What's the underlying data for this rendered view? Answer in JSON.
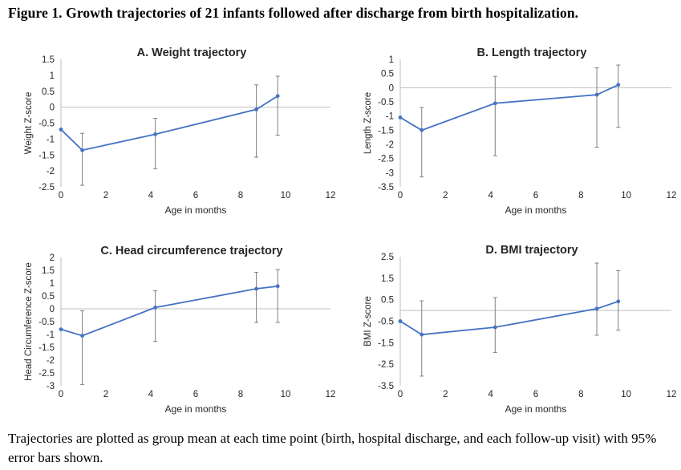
{
  "figure_title": "Figure  1. Growth trajectories of 21 infants followed after discharge from birth hospitalization.",
  "caption": "Trajectories are plotted as group mean at each time point (birth, hospital discharge, and each follow-up visit) with 95% error bars shown.",
  "colors": {
    "series": "#4472c4",
    "error_bar": "#7f7f7f",
    "zero_line": "#bfbfbf",
    "axis": "#bfbfbf"
  },
  "chart_data": [
    {
      "type": "line",
      "title": "A. Weight trajectory",
      "xlabel": "Age in months",
      "ylabel": "Weight Z-score",
      "xlim": [
        0,
        12
      ],
      "ylim": [
        -2.5,
        1.5
      ],
      "x_ticks": [
        "0",
        "2",
        "4",
        "6",
        "8",
        "10",
        "12"
      ],
      "y_ticks": [
        "1.5",
        "1",
        "0.5",
        "0",
        "-0.5",
        "-1",
        "-1.5",
        "-2",
        "-2.5"
      ],
      "grid": false,
      "series": [
        {
          "x": [
            0,
            0.95,
            4.2,
            8.7,
            9.65
          ],
          "y": [
            -0.7,
            -1.35,
            -0.85,
            -0.07,
            0.35
          ],
          "error_upper": [
            null,
            -0.82,
            -0.35,
            0.7,
            0.97
          ],
          "error_lower": [
            null,
            -2.45,
            -1.93,
            -1.57,
            -0.88
          ]
        }
      ]
    },
    {
      "type": "line",
      "title": "B. Length trajectory",
      "xlabel": "Age in months",
      "ylabel": "Length Z-score",
      "xlim": [
        0,
        12
      ],
      "ylim": [
        -3.5,
        1
      ],
      "x_ticks": [
        "0",
        "2",
        "4",
        "6",
        "8",
        "10",
        "12"
      ],
      "y_ticks": [
        "1",
        "0.5",
        "0",
        "-0.5",
        "-1",
        "-1.5",
        "-2",
        "-2.5",
        "-3",
        "-3.5"
      ],
      "grid": false,
      "series": [
        {
          "x": [
            0,
            0.95,
            4.2,
            8.7,
            9.65
          ],
          "y": [
            -1.05,
            -1.5,
            -0.55,
            -0.25,
            0.1
          ],
          "error_upper": [
            null,
            -0.7,
            0.4,
            0.7,
            0.8
          ],
          "error_lower": [
            null,
            -3.15,
            -2.4,
            -2.1,
            -1.4
          ]
        }
      ]
    },
    {
      "type": "line",
      "title": "C. Head circumference trajectory",
      "xlabel": "Age in months",
      "ylabel": "Head Circumference Z-score",
      "xlim": [
        0,
        12
      ],
      "ylim": [
        -3,
        2
      ],
      "x_ticks": [
        "0",
        "2",
        "4",
        "6",
        "8",
        "10",
        "12"
      ],
      "y_ticks": [
        "2",
        "1.5",
        "1",
        "0.5",
        "0",
        "-0.5",
        "-1",
        "-1.5",
        "-2",
        "-2.5",
        "-3"
      ],
      "grid": false,
      "series": [
        {
          "x": [
            0,
            0.95,
            4.2,
            8.7,
            9.65
          ],
          "y": [
            -0.8,
            -1.05,
            0.05,
            0.78,
            0.88
          ],
          "error_upper": [
            null,
            -0.08,
            0.7,
            1.42,
            1.53
          ],
          "error_lower": [
            null,
            -2.95,
            -1.27,
            -0.53,
            -0.53
          ]
        }
      ]
    },
    {
      "type": "line",
      "title": "D. BMI trajectory",
      "xlabel": "Age in months",
      "ylabel": "BMI Z-score",
      "xlim": [
        0,
        12
      ],
      "ylim": [
        -3.5,
        2.5
      ],
      "x_ticks": [
        "0",
        "2",
        "4",
        "6",
        "8",
        "10",
        "12"
      ],
      "y_ticks": [
        "2.5",
        "1.5",
        "0.5",
        "-0.5",
        "-1.5",
        "-2.5",
        "-3.5"
      ],
      "grid": false,
      "series": [
        {
          "x": [
            0,
            0.95,
            4.2,
            8.7,
            9.65
          ],
          "y": [
            -0.5,
            -1.12,
            -0.78,
            0.08,
            0.42
          ],
          "error_upper": [
            null,
            0.45,
            0.6,
            2.2,
            1.85
          ],
          "error_lower": [
            null,
            -3.05,
            -1.95,
            -1.15,
            -0.92
          ]
        }
      ]
    }
  ]
}
